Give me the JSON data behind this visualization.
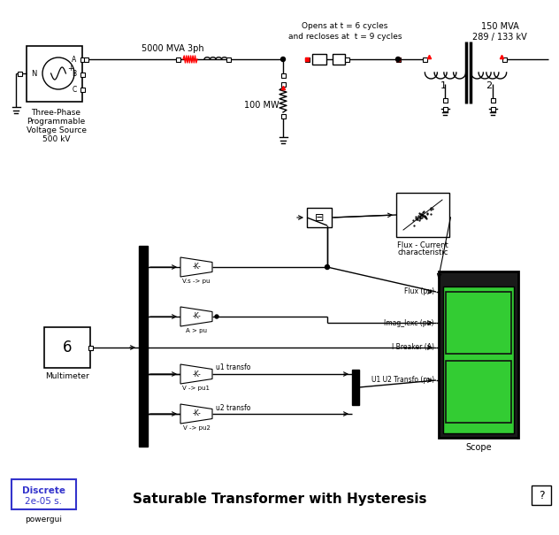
{
  "title": "Saturable Transformer with Hysteresis",
  "fig_width": 6.32,
  "fig_height": 6.05,
  "dpi": 100,
  "text_source_label": [
    "Three-Phase",
    "Programmable",
    "Voltage Source",
    "500 kV"
  ],
  "text_5000mva": "5000 MVA 3ph",
  "text_100mw": "100 MW",
  "text_opens": "Opens at t = 6 cycles",
  "text_recloses": "and recloses at  t = 9 cycles",
  "text_150mva": "150 MVA",
  "text_289": "289 / 133 kV",
  "text_discrete": "Discrete",
  "text_2e05": "2e-05 s.",
  "text_powergui": "powergui",
  "text_multimeter": "Multimeter",
  "text_6": "6",
  "text_flux_pu": "Flux (pu)",
  "text_imag": "Imag_Iexc (pu)",
  "text_ibreaker": "I Breaker (A)",
  "text_u1u2": "U1 U2 Transfo (pu)",
  "text_scope": "Scope",
  "text_flux_current": "Flux - Current",
  "text_characteristic": "characteristic",
  "text_vs_pu": "V.s -> pu",
  "text_a_pu": "A > pu",
  "text_v_pu1": "V -> pu1",
  "text_v_pu2": "V -> pu2",
  "text_u1transfo": "u1 transfo",
  "text_u2transfo": "u2 transfo",
  "text_question": "?",
  "label_1": "1",
  "label_2": "2"
}
